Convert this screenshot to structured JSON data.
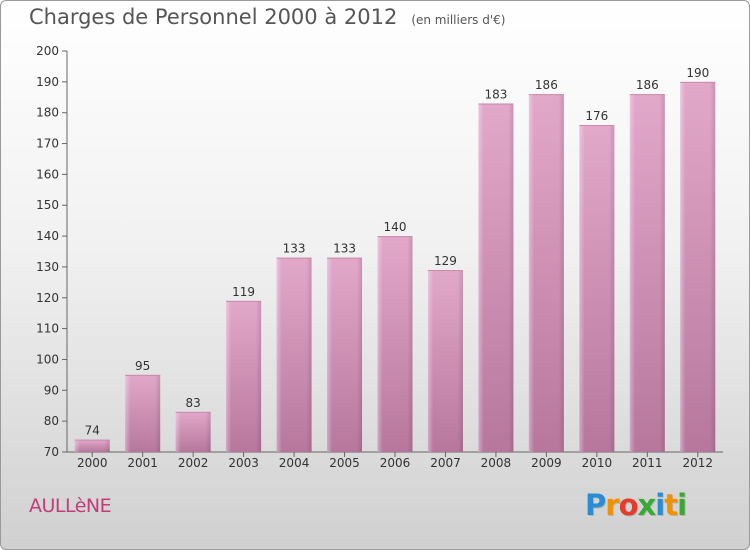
{
  "title": "Charges de Personnel 2000 à 2012",
  "unit_note": "(en milliers d'€)",
  "commune": "AULLèNE",
  "logo": {
    "letters": [
      "P",
      "r",
      "o",
      "x",
      "i",
      "t",
      "i"
    ],
    "colors": [
      "#2a8dd4",
      "#f39200",
      "#e53b2c",
      "#39a935",
      "#2a8dd4",
      "#f39200",
      "#39a935"
    ]
  },
  "chart_data": {
    "type": "bar",
    "title": "Charges de Personnel 2000 à 2012",
    "categories": [
      "2000",
      "2001",
      "2002",
      "2003",
      "2004",
      "2005",
      "2006",
      "2007",
      "2008",
      "2009",
      "2010",
      "2011",
      "2012"
    ],
    "values": [
      74,
      95,
      83,
      119,
      133,
      133,
      140,
      129,
      183,
      186,
      176,
      186,
      190
    ],
    "ylim": [
      70,
      200
    ],
    "yticks": [
      70,
      80,
      90,
      100,
      110,
      120,
      130,
      140,
      150,
      160,
      170,
      180,
      190,
      200
    ],
    "grid": false,
    "bar_color_top": "#e2a8c9",
    "bar_color_bottom": "#b7779d"
  }
}
